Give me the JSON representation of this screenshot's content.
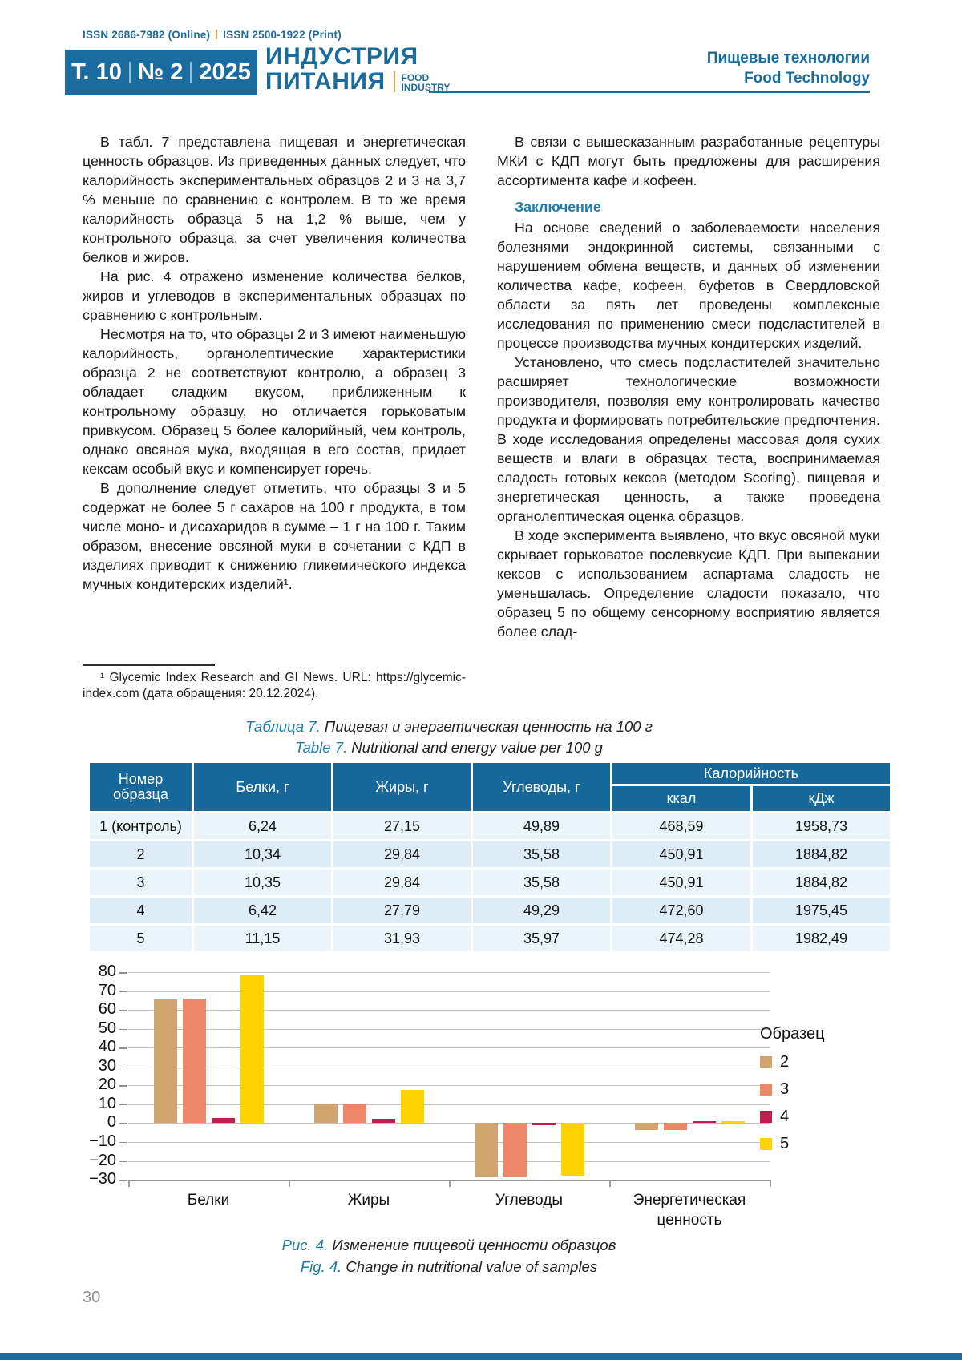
{
  "colors": {
    "brand_blue": "#1A6C9E",
    "accent_orange": "#F09E3C",
    "heading_blue": "#1E7CAB",
    "table_header_bg": "#16689B",
    "table_row_bg": "#EAF4FA",
    "table_row_alt_bg": "#DCEDF6",
    "grid_line": "#C3C3C3",
    "page_number_gray": "#8C8C8C"
  },
  "header": {
    "issn_online": "ISSN 2686-7982 (Online)",
    "issn_print": "ISSN 2500-1922 (Print)",
    "volume": [
      "Т. 10",
      "№ 2",
      "2025"
    ],
    "journal_title_line1": "ИНДУСТРИЯ",
    "journal_title_line2": "ПИТАНИЯ",
    "journal_subtitle_line1": "FOOD",
    "journal_subtitle_line2": "INDUSTRY",
    "section_ru": "Пищевые технологии",
    "section_en": "Food Technology"
  },
  "article": {
    "left_column": {
      "paragraphs": [
        "В табл. 7 представлена пищевая и энергетическая ценность образцов. Из приведенных данных следует, что калорийность экспериментальных образцов 2 и 3 на 3,7 % меньше по сравнению с контролем. В то же время калорийность образца 5 на 1,2 % выше, чем у контрольного образца, за счет увеличения количества белков и жиров.",
        "На рис. 4 отражено изменение количества белков, жиров и углеводов в экспериментальных образцах по сравнению с контрольным.",
        "Несмотря на то, что образцы 2 и 3 имеют наименьшую калорийность, органолептические характеристики образца 2 не соответствуют контролю, а образец 3 обладает сладким вкусом, приближенным к контрольному образцу, но отличается горьковатым привкусом. Образец 5 более калорийный, чем контроль, однако овсяная мука, входящая в его состав, придает кексам особый вкус и компенсирует горечь.",
        "В дополнение следует отметить, что образцы 3 и 5 содержат не более 5 г сахаров на 100 г продукта, в том числе моно- и дисахаридов в сумме – 1 г на 100 г. Таким образом, внесение овсяной муки в сочетании с КДП в изделиях приводит к снижению гликемического индекса мучных кондитерских изделий¹."
      ],
      "footnote": "¹ Glycemic Index Research and GI News. URL: https://glycemic-index.com (дата обращения: 20.12.2024)."
    },
    "right_column": {
      "intro": "В связи с вышесказанным разработанные рецептуры МКИ с КДП могут быть предложены для расширения ассортимента кафе и кофеен.",
      "heading": "Заключение",
      "paragraphs": [
        "На основе сведений о заболеваемости населения болезнями эндокринной системы, связанными с нарушением обмена веществ, и данных об изменении количества кафе, кофеен, буфетов в Свердловской области за пять лет проведены комплексные исследования по применению смеси подсластителей в процессе производства мучных кондитерских изделий.",
        "Установлено, что смесь подсластителей значительно расширяет технологические возможности производителя, позволяя ему контролировать качество продукта и формировать потребительские предпочтения. В ходе исследования определены массовая доля сухих веществ и влаги в образцах теста, воспринимаемая сладость готовых кексов (методом Scoring), пищевая и энергетическая ценность, а также проведена органолептическая оценка образцов.",
        "В ходе эксперимента выявлено, что вкус овсяной муки скрывает горьковатое послевкусие КДП. При выпекании кексов с использованием аспартама сладость не уменьшалась. Определение сладости показало, что образец 5 по общему сенсорному восприятию является более слад-"
      ]
    }
  },
  "table7": {
    "caption": {
      "label_ru": "Таблица 7.",
      "text_ru": " Пищевая и энергетическая ценность на 100 г",
      "label_en": "Table 7.",
      "text_en": " Nutritional and energy value per 100 g"
    },
    "col_headers": {
      "sample": "Номер образца",
      "protein": "Белки, г",
      "fat": "Жиры, г",
      "carbs": "Углеводы, г",
      "calories": "Калорийность",
      "kcal": "ккал",
      "kj": "кДж"
    },
    "rows": [
      [
        "1 (контроль)",
        "6,24",
        "27,15",
        "49,89",
        "468,59",
        "1958,73"
      ],
      [
        "2",
        "10,34",
        "29,84",
        "35,58",
        "450,91",
        "1884,82"
      ],
      [
        "3",
        "10,35",
        "29,84",
        "35,58",
        "450,91",
        "1884,82"
      ],
      [
        "4",
        "6,42",
        "27,79",
        "49,29",
        "472,60",
        "1975,45"
      ],
      [
        "5",
        "11,15",
        "31,93",
        "35,97",
        "474,28",
        "1982,49"
      ]
    ]
  },
  "figure4": {
    "caption": {
      "label_ru": "Рис. 4.",
      "text_ru": " Изменение пищевой ценности образцов",
      "label_en": "Fig. 4.",
      "text_en": " Change in nutritional value of samples"
    }
  },
  "chart_data": {
    "type": "bar",
    "categories": [
      "Белки",
      "Жиры",
      "Углеводы",
      "Энергетическая ценность"
    ],
    "series": [
      {
        "name": "2",
        "color": "#D1A570",
        "values": [
          65.7,
          9.9,
          -28.7,
          -3.8
        ]
      },
      {
        "name": "3",
        "color": "#F08668",
        "values": [
          65.9,
          9.9,
          -28.7,
          -3.8
        ]
      },
      {
        "name": "4",
        "color": "#C01E4E",
        "values": [
          2.9,
          2.4,
          -1.2,
          0.9
        ]
      },
      {
        "name": "5",
        "color": "#FFD200",
        "values": [
          78.7,
          17.6,
          -27.9,
          1.2
        ]
      }
    ],
    "ylim": [
      -30,
      80
    ],
    "ytick_step": 10,
    "grid": true,
    "legend_title": "Образец",
    "legend_position": "right"
  },
  "footer": {
    "page_number": "30"
  }
}
